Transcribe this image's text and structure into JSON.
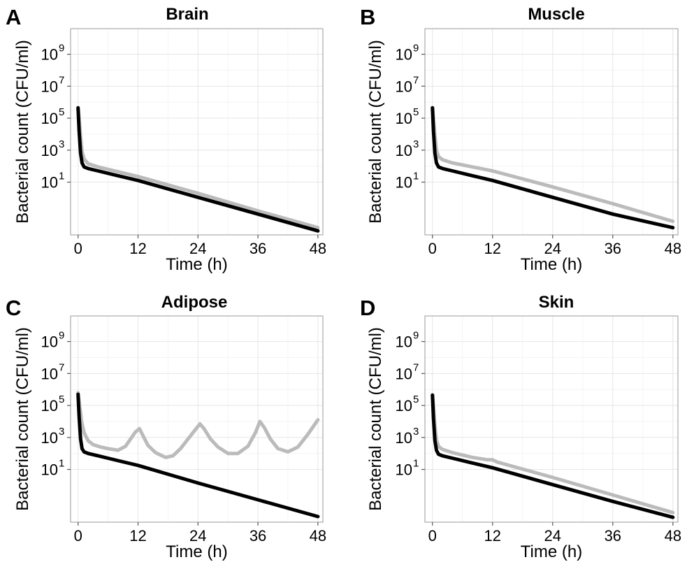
{
  "chart_data": [
    {
      "type": "line",
      "panel_label": "A",
      "title": "Brain",
      "xlabel": "Time (h)",
      "ylabel": "Bacterial count (CFU/ml)",
      "xlim": [
        -1.5,
        49
      ],
      "ylim_log10": [
        -2.3,
        10.6
      ],
      "y_scale": "log10",
      "grid": true,
      "xticks": [
        0,
        12,
        24,
        36,
        48
      ],
      "xtick_labels": [
        "0",
        "12",
        "24",
        "36",
        "48"
      ],
      "yticks_log10": [
        1,
        3,
        5,
        7,
        9
      ],
      "ytick_labels": [
        {
          "base": "10",
          "exp": "1"
        },
        {
          "base": "10",
          "exp": "3"
        },
        {
          "base": "10",
          "exp": "5"
        },
        {
          "base": "10",
          "exp": "7"
        },
        {
          "base": "10",
          "exp": "9"
        }
      ],
      "series": [
        {
          "color": "#bbbbbb",
          "x": [
            0,
            0.2,
            0.5,
            0.8,
            1.2,
            2,
            4,
            8,
            12,
            24,
            36,
            48
          ],
          "log10_y": [
            5.65,
            5.0,
            3.8,
            2.9,
            2.45,
            2.15,
            1.95,
            1.65,
            1.35,
            0.3,
            -0.8,
            -1.85
          ]
        },
        {
          "color": "#000000",
          "x": [
            0,
            0.2,
            0.5,
            0.8,
            1.2,
            2,
            4,
            8,
            12,
            24,
            36,
            48
          ],
          "log10_y": [
            5.65,
            4.2,
            2.8,
            2.2,
            1.95,
            1.85,
            1.7,
            1.4,
            1.1,
            0.05,
            -1.0,
            -2.05
          ]
        }
      ]
    },
    {
      "type": "line",
      "panel_label": "B",
      "title": "Muscle",
      "xlabel": "Time (h)",
      "ylabel": "Bacterial count (CFU/ml)",
      "xlim": [
        -1.5,
        49
      ],
      "ylim_log10": [
        -2.3,
        10.6
      ],
      "y_scale": "log10",
      "grid": true,
      "xticks": [
        0,
        12,
        24,
        36,
        48
      ],
      "xtick_labels": [
        "0",
        "12",
        "24",
        "36",
        "48"
      ],
      "yticks_log10": [
        1,
        3,
        5,
        7,
        9
      ],
      "ytick_labels": [
        {
          "base": "10",
          "exp": "1"
        },
        {
          "base": "10",
          "exp": "3"
        },
        {
          "base": "10",
          "exp": "5"
        },
        {
          "base": "10",
          "exp": "7"
        },
        {
          "base": "10",
          "exp": "9"
        }
      ],
      "series": [
        {
          "color": "#bbbbbb",
          "x": [
            0,
            0.2,
            0.5,
            0.8,
            1.2,
            2,
            4,
            8,
            12,
            24,
            36,
            48
          ],
          "log10_y": [
            5.65,
            5.0,
            3.9,
            3.0,
            2.6,
            2.4,
            2.2,
            1.95,
            1.7,
            0.7,
            -0.35,
            -1.45
          ]
        },
        {
          "color": "#000000",
          "x": [
            0,
            0.2,
            0.5,
            0.8,
            1.2,
            2,
            4,
            8,
            12,
            24,
            36,
            48
          ],
          "log10_y": [
            5.65,
            4.2,
            2.8,
            2.2,
            1.95,
            1.85,
            1.7,
            1.4,
            1.1,
            0.05,
            -1.0,
            -1.85
          ]
        }
      ]
    },
    {
      "type": "line",
      "panel_label": "C",
      "title": "Adipose",
      "xlabel": "Time (h)",
      "ylabel": "Bacterial count (CFU/ml)",
      "xlim": [
        -1.5,
        49
      ],
      "ylim_log10": [
        -2.3,
        10.6
      ],
      "y_scale": "log10",
      "grid": true,
      "xticks": [
        0,
        12,
        24,
        36,
        48
      ],
      "xtick_labels": [
        "0",
        "12",
        "24",
        "36",
        "48"
      ],
      "yticks_log10": [
        1,
        3,
        5,
        7,
        9
      ],
      "ytick_labels": [
        {
          "base": "10",
          "exp": "1"
        },
        {
          "base": "10",
          "exp": "3"
        },
        {
          "base": "10",
          "exp": "5"
        },
        {
          "base": "10",
          "exp": "7"
        },
        {
          "base": "10",
          "exp": "9"
        }
      ],
      "series": [
        {
          "color": "#bbbbbb",
          "x": [
            0,
            0.3,
            0.7,
            1.2,
            2,
            3,
            4.5,
            6,
            8,
            9.5,
            10.5,
            11.5,
            12.3,
            13,
            14,
            15.5,
            17.5,
            19,
            20.5,
            22,
            23.5,
            24.4,
            25.2,
            26.5,
            28,
            30,
            32,
            34,
            35.5,
            36.4,
            37.3,
            38.5,
            40,
            42,
            44,
            46,
            48
          ],
          "log10_y": [
            5.8,
            5.0,
            4.0,
            3.3,
            2.8,
            2.55,
            2.4,
            2.3,
            2.2,
            2.45,
            2.9,
            3.35,
            3.55,
            3.1,
            2.5,
            2.05,
            1.75,
            1.85,
            2.3,
            2.9,
            3.5,
            3.85,
            3.55,
            2.9,
            2.4,
            2.0,
            2.0,
            2.45,
            3.3,
            4.0,
            3.6,
            2.9,
            2.3,
            2.1,
            2.4,
            3.2,
            4.1
          ]
        },
        {
          "color": "#000000",
          "x": [
            0,
            0.2,
            0.5,
            0.8,
            1.2,
            2,
            4,
            8,
            12,
            24,
            36,
            48
          ],
          "log10_y": [
            5.7,
            4.3,
            2.9,
            2.3,
            2.1,
            2.0,
            1.85,
            1.55,
            1.25,
            0.15,
            -0.9,
            -1.95
          ]
        }
      ]
    },
    {
      "type": "line",
      "panel_label": "D",
      "title": "Skin",
      "xlabel": "Time (h)",
      "ylabel": "Bacterial count (CFU/ml)",
      "xlim": [
        -1.5,
        49
      ],
      "ylim_log10": [
        -2.3,
        10.6
      ],
      "y_scale": "log10",
      "grid": true,
      "xticks": [
        0,
        12,
        24,
        36,
        48
      ],
      "xtick_labels": [
        "0",
        "12",
        "24",
        "36",
        "48"
      ],
      "yticks_log10": [
        1,
        3,
        5,
        7,
        9
      ],
      "ytick_labels": [
        {
          "base": "10",
          "exp": "1"
        },
        {
          "base": "10",
          "exp": "3"
        },
        {
          "base": "10",
          "exp": "5"
        },
        {
          "base": "10",
          "exp": "7"
        },
        {
          "base": "10",
          "exp": "9"
        }
      ],
      "series": [
        {
          "color": "#bbbbbb",
          "x": [
            0,
            0.2,
            0.5,
            0.8,
            1.2,
            2,
            4,
            8,
            11,
            12,
            13,
            24,
            36,
            48
          ],
          "log10_y": [
            5.65,
            5.0,
            3.7,
            2.85,
            2.45,
            2.25,
            2.05,
            1.75,
            1.6,
            1.6,
            1.45,
            0.5,
            -0.6,
            -1.7
          ]
        },
        {
          "color": "#000000",
          "x": [
            0,
            0.2,
            0.5,
            0.8,
            1.2,
            2,
            4,
            8,
            12,
            24,
            36,
            48
          ],
          "log10_y": [
            5.65,
            4.2,
            2.8,
            2.2,
            1.95,
            1.85,
            1.7,
            1.4,
            1.1,
            0.05,
            -1.0,
            -2.0
          ]
        }
      ]
    }
  ]
}
